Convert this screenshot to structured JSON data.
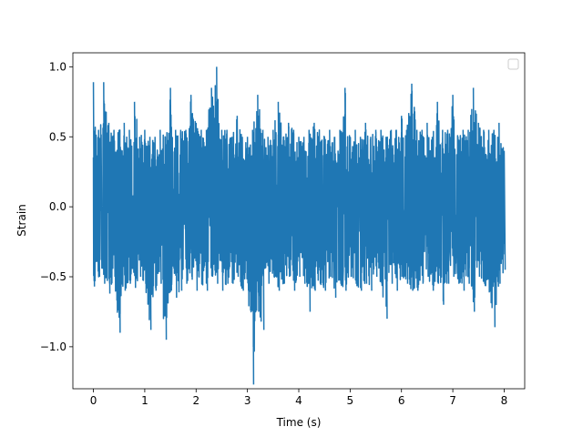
{
  "chart_data": {
    "type": "line",
    "title": "",
    "xlabel": "Time (s)",
    "ylabel": "Strain",
    "xlim": [
      -0.4,
      8.4
    ],
    "ylim": [
      -1.3,
      1.1
    ],
    "x_ticks": [
      0,
      1,
      2,
      3,
      4,
      5,
      6,
      7,
      8
    ],
    "x_tick_labels": [
      "0",
      "1",
      "2",
      "3",
      "4",
      "5",
      "6",
      "7",
      "8"
    ],
    "y_ticks": [
      -1.0,
      -0.5,
      0.0,
      0.5,
      1.0
    ],
    "y_tick_labels": [
      "−1.0",
      "−0.5",
      "0.0",
      "0.5",
      "1.0"
    ],
    "grid": false,
    "legend": "top-right",
    "series_color": "#1f77b4",
    "series": [
      {
        "x": [
          0.0,
          0.1,
          0.2,
          0.3,
          0.4,
          0.5,
          0.6,
          0.7,
          0.8,
          0.9,
          1.0,
          1.1,
          1.2,
          1.3,
          1.4,
          1.5,
          1.6,
          1.7,
          1.8,
          1.9,
          2.0,
          2.1,
          2.2,
          2.3,
          2.4,
          2.5,
          2.6,
          2.7,
          2.8,
          2.9,
          3.0,
          3.1,
          3.2,
          3.3,
          3.4,
          3.5,
          3.6,
          3.7,
          3.8,
          3.9,
          4.0,
          4.1,
          4.2,
          4.3,
          4.4,
          4.5,
          4.6,
          4.7,
          4.8,
          4.9,
          5.0,
          5.1,
          5.2,
          5.3,
          5.4,
          5.5,
          5.6,
          5.7,
          5.8,
          5.9,
          6.0,
          6.1,
          6.2,
          6.3,
          6.4,
          6.5,
          6.6,
          6.7,
          6.8,
          6.9,
          7.0,
          7.1,
          7.2,
          7.3,
          7.4,
          7.5,
          7.6,
          7.7,
          7.8,
          7.9,
          8.0
        ],
        "y_max": [
          0.89,
          0.55,
          0.89,
          0.6,
          0.55,
          0.55,
          0.6,
          0.55,
          0.75,
          0.5,
          0.55,
          0.5,
          0.5,
          0.55,
          0.5,
          0.85,
          0.55,
          0.55,
          0.55,
          0.8,
          0.6,
          0.55,
          0.55,
          0.85,
          1.0,
          0.55,
          0.55,
          0.5,
          0.65,
          0.5,
          0.5,
          0.55,
          0.8,
          0.55,
          0.5,
          0.55,
          0.75,
          0.5,
          0.6,
          0.55,
          0.5,
          0.5,
          0.55,
          0.6,
          0.55,
          0.5,
          0.55,
          0.5,
          0.55,
          0.85,
          0.5,
          0.55,
          0.5,
          0.6,
          0.5,
          0.55,
          0.55,
          0.5,
          0.55,
          0.55,
          0.65,
          0.55,
          0.88,
          0.55,
          0.55,
          0.6,
          0.5,
          0.75,
          0.55,
          0.55,
          0.8,
          0.5,
          0.55,
          0.55,
          0.85,
          0.6,
          0.55,
          0.55,
          0.55,
          0.6,
          0.4
        ],
        "y_min": [
          -0.57,
          -0.5,
          -0.55,
          -0.62,
          -0.5,
          -0.9,
          -0.6,
          -0.55,
          -0.58,
          -0.5,
          -0.55,
          -0.88,
          -0.6,
          -0.55,
          -0.95,
          -0.6,
          -0.65,
          -0.6,
          -0.55,
          -0.5,
          -0.6,
          -0.55,
          -0.6,
          -0.5,
          -0.55,
          -0.6,
          -0.55,
          -0.55,
          -0.5,
          -0.6,
          -0.6,
          -1.27,
          -0.75,
          -0.88,
          -0.55,
          -0.5,
          -0.6,
          -0.55,
          -0.5,
          -0.6,
          -0.5,
          -0.55,
          -0.75,
          -0.6,
          -0.55,
          -0.6,
          -0.5,
          -0.65,
          -0.55,
          -0.6,
          -0.5,
          -0.55,
          -0.6,
          -0.55,
          -0.6,
          -0.5,
          -0.55,
          -0.8,
          -0.55,
          -0.6,
          -0.5,
          -0.55,
          -0.6,
          -0.6,
          -0.55,
          -0.5,
          -0.6,
          -0.55,
          -0.7,
          -0.55,
          -0.5,
          -0.55,
          -0.6,
          -0.55,
          -0.75,
          -0.5,
          -0.55,
          -0.6,
          -0.86,
          -0.55,
          -0.45
        ]
      }
    ]
  }
}
